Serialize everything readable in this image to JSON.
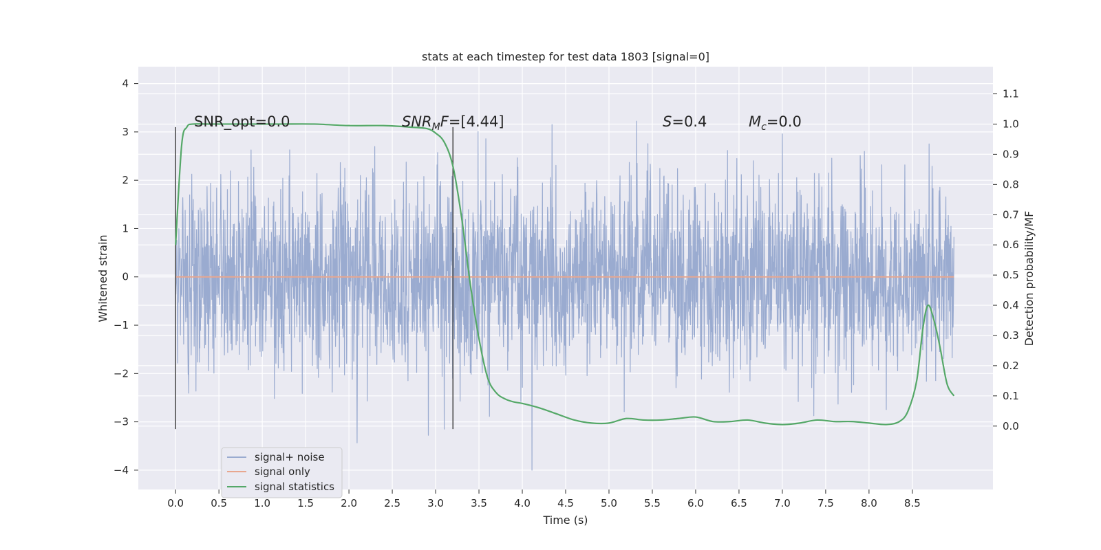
{
  "chart_data": {
    "type": "line",
    "title": "stats at each timestep for test data 1803 [signal=0]",
    "xlabel": "Time (s)",
    "ylabel_left": "Whitened strain",
    "ylabel_right": "Detection probability/MF",
    "xlim": [
      -0.43,
      9.43
    ],
    "ylim_left": [
      -4.4,
      4.35
    ],
    "ylim_right": [
      -0.21,
      1.19
    ],
    "x_ticks": [
      0.0,
      0.5,
      1.0,
      1.5,
      2.0,
      2.5,
      3.0,
      3.5,
      4.0,
      4.5,
      5.0,
      5.5,
      6.0,
      6.5,
      7.0,
      7.5,
      8.0,
      8.5
    ],
    "x_tick_labels": [
      "0.0",
      "0.5",
      "1.0",
      "1.5",
      "2.0",
      "2.5",
      "3.0",
      "3.5",
      "4.0",
      "4.5",
      "5.0",
      "5.5",
      "6.0",
      "6.5",
      "7.0",
      "7.5",
      "8.0",
      "8.5"
    ],
    "y_left_ticks": [
      4,
      3,
      2,
      1,
      0,
      -1,
      -2,
      -3,
      -4
    ],
    "y_left_tick_labels": [
      "4",
      "3",
      "2",
      "1",
      "0",
      "−1",
      "−2",
      "−3",
      "−4"
    ],
    "y_right_ticks": [
      1.1,
      1.0,
      0.9,
      0.8,
      0.7,
      0.6,
      0.5,
      0.4,
      0.3,
      0.2,
      0.1,
      0.0
    ],
    "y_right_tick_labels": [
      "1.1",
      "1.0",
      "0.9",
      "0.8",
      "0.7",
      "0.6",
      "0.5",
      "0.4",
      "0.3",
      "0.2",
      "0.1",
      "0.0"
    ],
    "grid": true,
    "legend_position": "lower-left",
    "annotations": {
      "snr_opt": "SNR_opt=0.0",
      "snr_mf_base": "SNR",
      "snr_mf_sub": "M",
      "snr_mf_rest": "F",
      "snr_mf_value": "=[4.44]",
      "s_symbol": "S",
      "s_value": "=0.4",
      "mc_base": "M",
      "mc_sub": "c",
      "mc_value": "=0.0"
    },
    "vertical_markers": [
      {
        "x": 0.0,
        "y_from": -3.15,
        "y_to": 3.1
      },
      {
        "x": 3.2,
        "y_from": -3.15,
        "y_to": 3.1
      }
    ],
    "series": [
      {
        "name": "signal+ noise",
        "axis": "left",
        "color": "#9aabd0",
        "x_start": 0.0,
        "x_end": 8.98,
        "typical_range": [
          -2.0,
          2.0
        ],
        "peak_range": [
          -4.0,
          4.0
        ]
      },
      {
        "name": "signal only",
        "axis": "left",
        "color": "#e8a78f",
        "x": [
          0.0,
          8.98
        ],
        "y": [
          0.0,
          0.0
        ]
      },
      {
        "name": "signal statistics",
        "axis": "right",
        "color": "#55a868",
        "x": [
          0.0,
          0.07,
          0.13,
          0.2,
          0.4,
          0.8,
          1.2,
          1.6,
          2.0,
          2.4,
          2.7,
          2.9,
          3.0,
          3.1,
          3.2,
          3.3,
          3.4,
          3.5,
          3.6,
          3.7,
          3.8,
          3.9,
          4.0,
          4.2,
          4.4,
          4.6,
          4.8,
          5.0,
          5.2,
          5.4,
          5.6,
          5.8,
          6.0,
          6.2,
          6.4,
          6.6,
          6.8,
          7.0,
          7.2,
          7.4,
          7.6,
          7.8,
          8.0,
          8.2,
          8.35,
          8.45,
          8.55,
          8.62,
          8.68,
          8.75,
          8.82,
          8.9,
          8.98
        ],
        "y": [
          0.6,
          0.93,
          0.99,
          1.0,
          1.0,
          1.0,
          1.0,
          1.0,
          0.995,
          0.995,
          0.99,
          0.985,
          0.97,
          0.94,
          0.86,
          0.69,
          0.47,
          0.29,
          0.16,
          0.11,
          0.09,
          0.08,
          0.075,
          0.06,
          0.04,
          0.02,
          0.01,
          0.01,
          0.025,
          0.02,
          0.02,
          0.025,
          0.03,
          0.015,
          0.015,
          0.02,
          0.01,
          0.005,
          0.01,
          0.02,
          0.015,
          0.015,
          0.01,
          0.005,
          0.015,
          0.05,
          0.15,
          0.32,
          0.4,
          0.35,
          0.26,
          0.14,
          0.1
        ]
      }
    ]
  }
}
